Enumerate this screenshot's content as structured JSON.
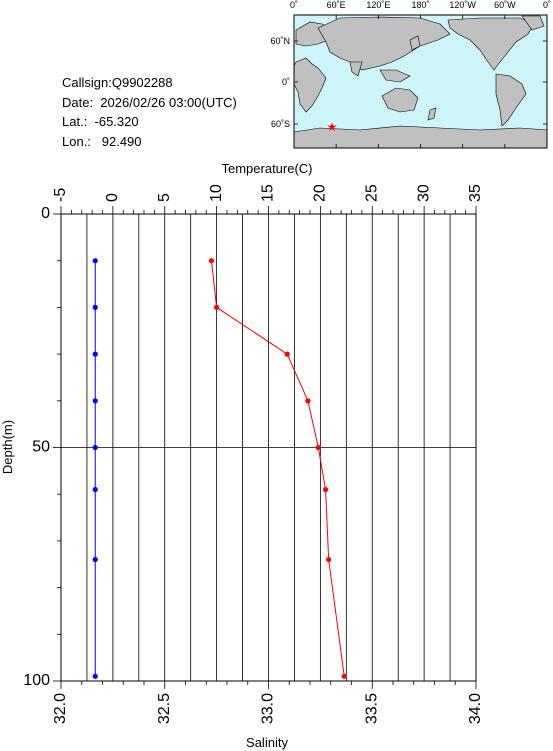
{
  "info": {
    "callsign": "Callsign:Q9902288",
    "date": "Date:  2026/02/26 03:00(UTC)",
    "lat": "Lat.:  -65.320",
    "lon": "Lon.:   92.490"
  },
  "map": {
    "top_labels": [
      "0˚",
      "60˚E",
      "120˚E",
      "180˚",
      "120˚W",
      "60˚W",
      "0˚"
    ],
    "side_labels": [
      "60˚N",
      "0˚",
      "60˚S"
    ],
    "station_marker": "star",
    "ocean_color": "#cdf4f8",
    "land_color": "#c0c0c0"
  },
  "chart_data": {
    "type": "line",
    "ylabel": "Depth(m)",
    "ylim": [
      100,
      0
    ],
    "yticks": [
      "0",
      "50",
      "100"
    ],
    "x_top": {
      "label": "Temperature(C)",
      "lim": [
        -5,
        35
      ],
      "ticks": [
        "-5",
        "0",
        "5",
        "10",
        "15",
        "20",
        "25",
        "30",
        "35"
      ]
    },
    "x_bottom": {
      "label": "Salinity",
      "lim": [
        32.0,
        34.0
      ],
      "ticks": [
        "32.0",
        "32.5",
        "33.0",
        "33.5",
        "34.0"
      ]
    },
    "series": [
      {
        "axis": "temperature",
        "color": "#ff0000",
        "depth": [
          10,
          20,
          30,
          40,
          50,
          59,
          74,
          99
        ],
        "values": [
          9.5,
          10.0,
          16.8,
          18.8,
          19.8,
          20.5,
          20.8,
          22.3
        ]
      },
      {
        "axis": "temperature",
        "color": "#0000ff",
        "depth": [
          10,
          20,
          30,
          40,
          50,
          59,
          74,
          99
        ],
        "values": [
          -1.7,
          -1.7,
          -1.7,
          -1.7,
          -1.7,
          -1.7,
          -1.7,
          -1.7
        ]
      }
    ],
    "grid": true
  }
}
